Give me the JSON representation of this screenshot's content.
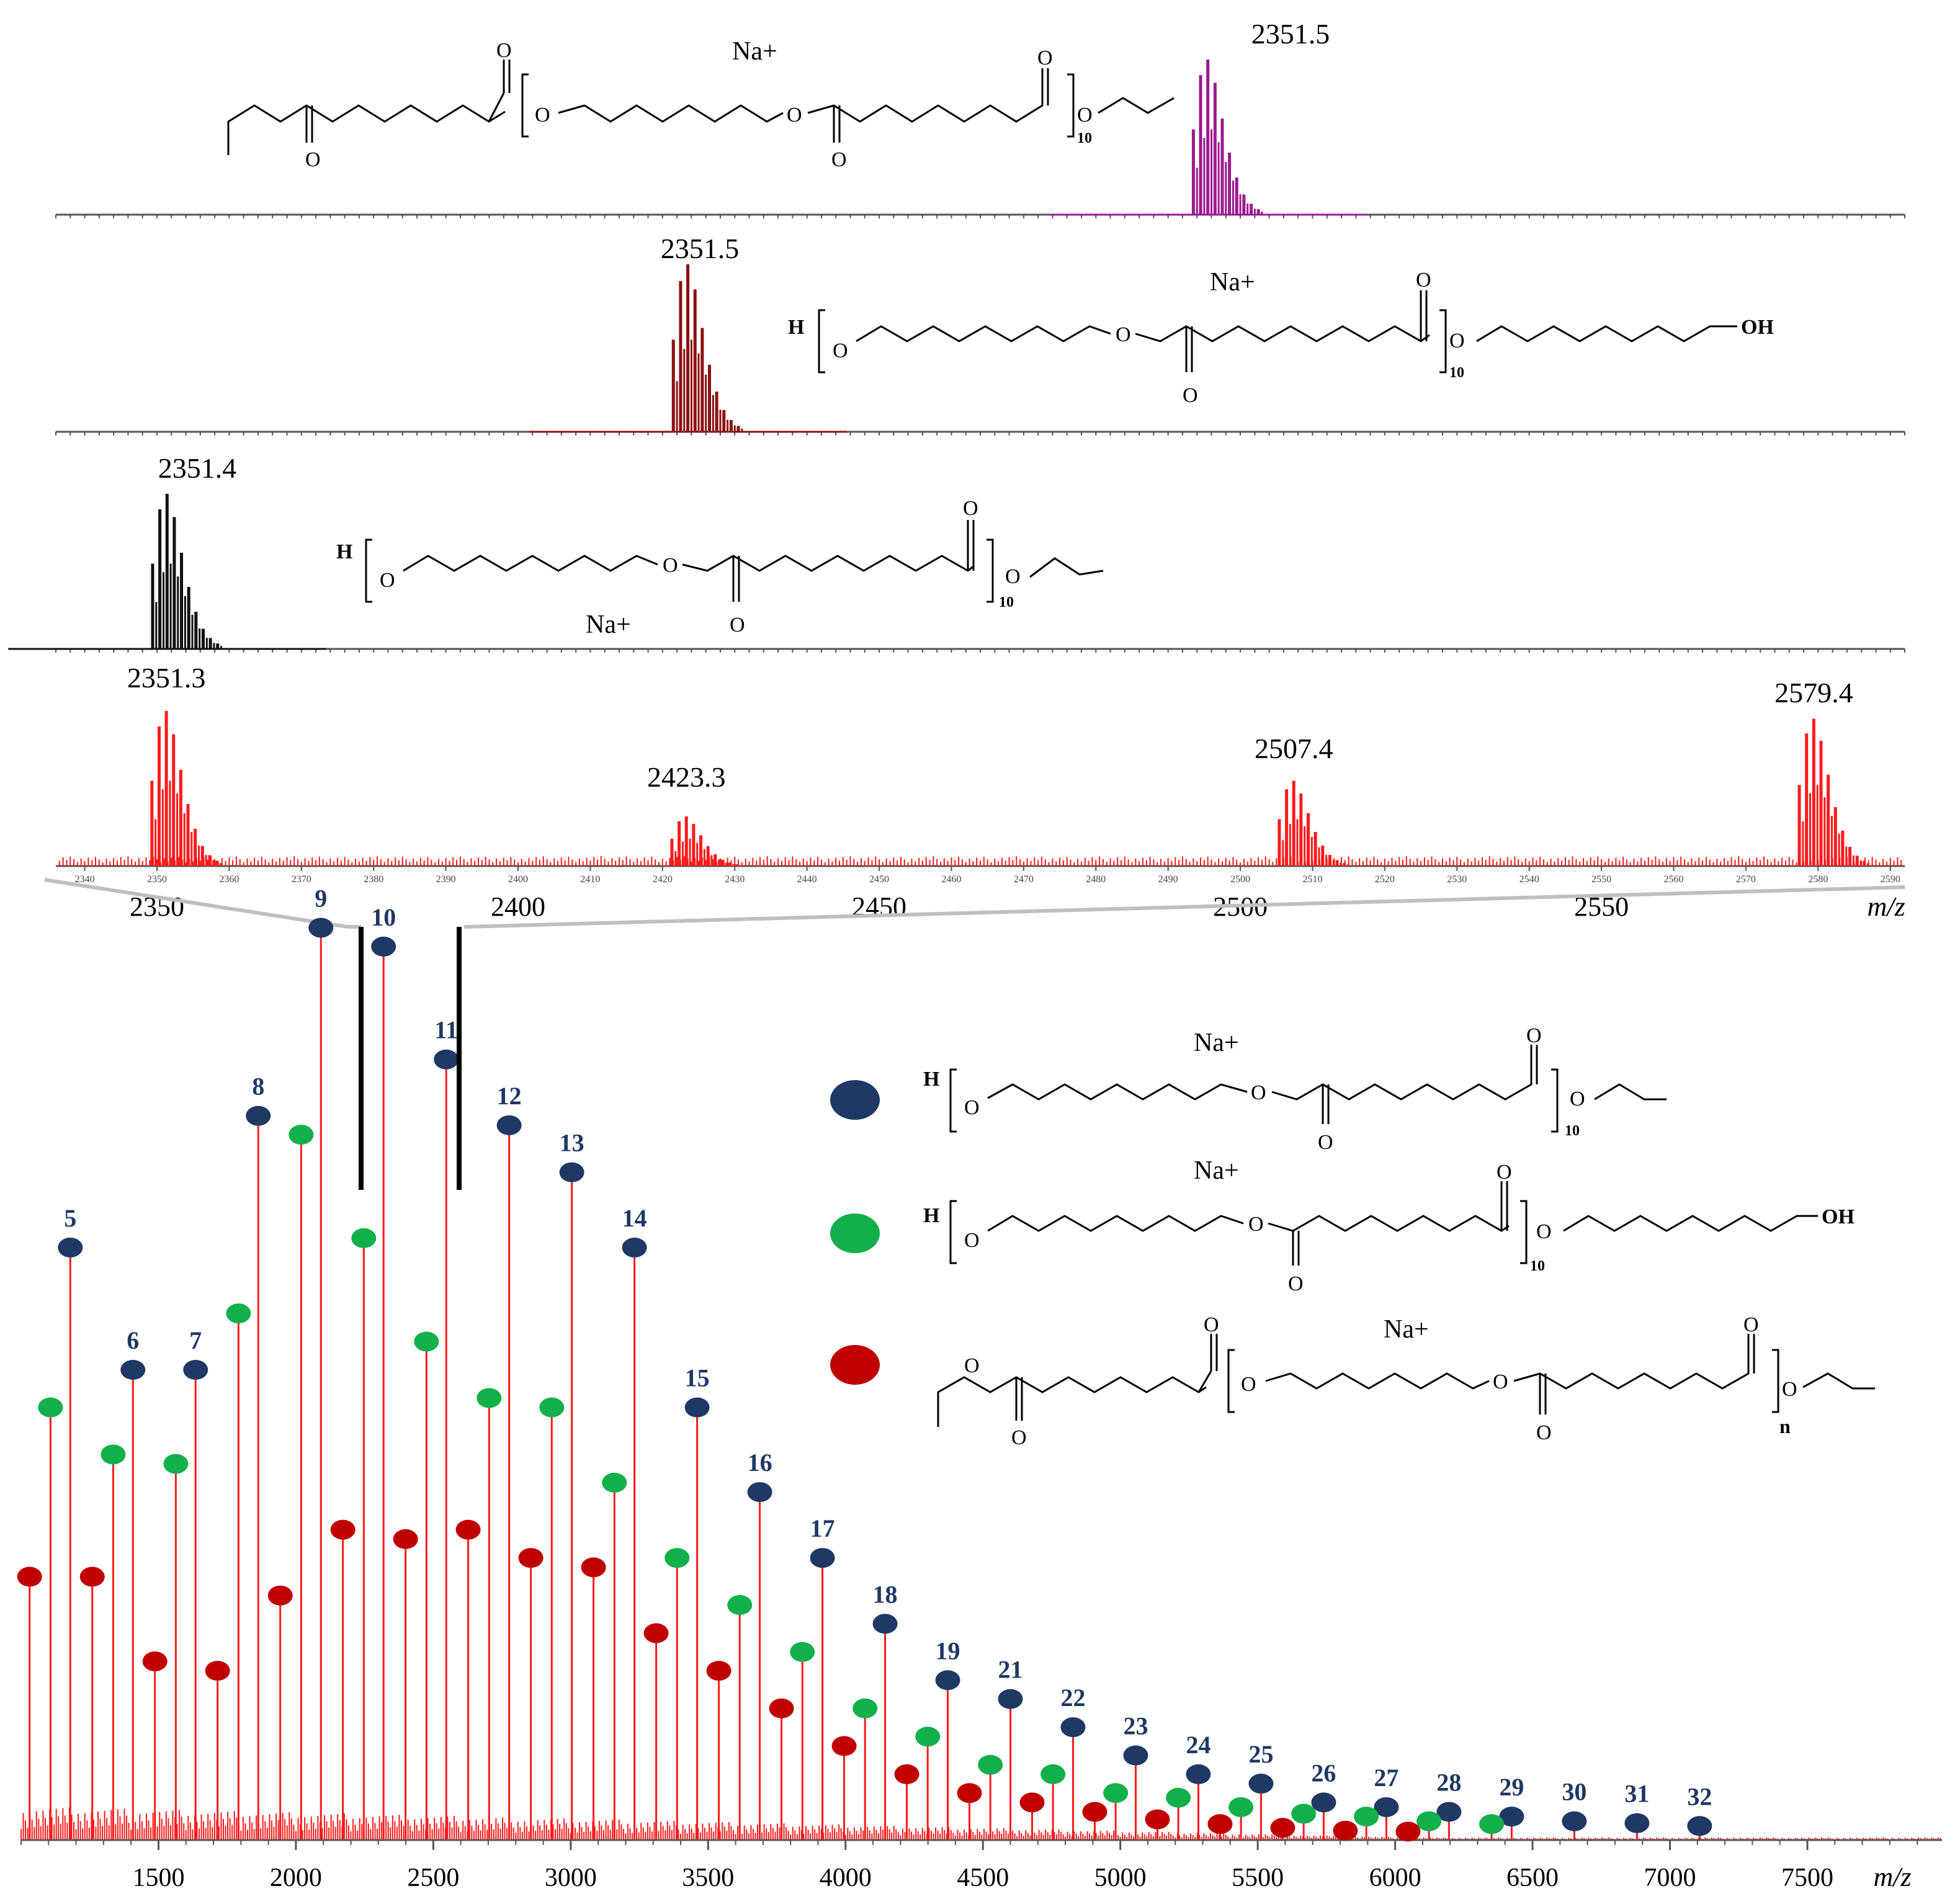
{
  "colors": {
    "background": "#ffffff",
    "spectrum_red": "#ff1a1a",
    "spectrum_purple": "#9c1a8e",
    "spectrum_darkred": "#8b1111",
    "spectrum_black": "#111111",
    "marker_blue": "#1f3864",
    "marker_green": "#12b04a",
    "marker_red": "#c00000",
    "axis": "#555555",
    "zoom_line": "#bfbfbf"
  },
  "chart_data": [
    {
      "id": "sim-ethyl-ethyl",
      "type": "line",
      "title": "",
      "peak_label": "2351.5",
      "peak_mz": 2351.5,
      "relative_intensity": 1.0,
      "cation": "Na+",
      "structure": "ethyl-terminated adipate / hexanediol ester, both ends ethyl ester",
      "subscript": "10",
      "color": "purple"
    },
    {
      "id": "sim-oh-oh",
      "type": "line",
      "title": "",
      "peak_label": "2351.5",
      "peak_mz": 2351.5,
      "relative_intensity": 1.0,
      "cation": "Na+",
      "end_group_left": "H",
      "end_group_right": "OH",
      "subscript": "10",
      "color": "darkred"
    },
    {
      "id": "sim-oh-ethyl",
      "type": "line",
      "title": "",
      "peak_label": "2351.4",
      "peak_mz": 2351.4,
      "relative_intensity": 1.0,
      "cation": "Na+",
      "end_group_left": "H",
      "subscript": "10",
      "color": "black"
    },
    {
      "id": "experimental-zoom",
      "type": "line",
      "xlabel": "m/z",
      "xlim": [
        2336,
        2592
      ],
      "minor_tick_labels": [
        "2340",
        "2350",
        "2360",
        "2370",
        "2380",
        "2390",
        "2400",
        "2410",
        "2420",
        "2430",
        "2440",
        "2450",
        "2460",
        "2470",
        "2480",
        "2490",
        "2500",
        "2510",
        "2520",
        "2530",
        "2540",
        "2550",
        "2560",
        "2570",
        "2580",
        "2590"
      ],
      "major_tick_labels": [
        "2350",
        "2400",
        "2450",
        "2500",
        "2550"
      ],
      "peaks": [
        {
          "label": "2351.3",
          "mz": 2351.3,
          "intensity": 1.0
        },
        {
          "label": "2423.3",
          "mz": 2423.3,
          "intensity": 0.32
        },
        {
          "label": "2507.4",
          "mz": 2507.4,
          "intensity": 0.55
        },
        {
          "label": "2579.4",
          "mz": 2579.4,
          "intensity": 0.95
        }
      ]
    },
    {
      "id": "full-spectrum",
      "type": "line",
      "xlabel": "m/z",
      "xlim": [
        1000,
        7990
      ],
      "ylim": [
        0,
        1
      ],
      "x_tick_labels": [
        "1500",
        "2000",
        "2500",
        "3000",
        "3500",
        "4000",
        "4500",
        "5000",
        "5500",
        "6000",
        "6500",
        "7000",
        "7500"
      ],
      "series": [
        {
          "name": "H / ethyl terminated (blue)",
          "marker": "blue",
          "points": [
            {
              "n": "5",
              "mz": 1179,
              "intensity": 0.63
            },
            {
              "n": "6",
              "mz": 1407,
              "intensity": 0.5
            },
            {
              "n": "7",
              "mz": 1635,
              "intensity": 0.5
            },
            {
              "n": "8",
              "mz": 1863,
              "intensity": 0.77
            },
            {
              "n": "9",
              "mz": 2091,
              "intensity": 0.97
            },
            {
              "n": "10",
              "mz": 2319,
              "intensity": 0.95
            },
            {
              "n": "11",
              "mz": 2547,
              "intensity": 0.83
            },
            {
              "n": "12",
              "mz": 2776,
              "intensity": 0.76
            },
            {
              "n": "13",
              "mz": 3004,
              "intensity": 0.71
            },
            {
              "n": "14",
              "mz": 3232,
              "intensity": 0.63
            },
            {
              "n": "15",
              "mz": 3460,
              "intensity": 0.46
            },
            {
              "n": "16",
              "mz": 3688,
              "intensity": 0.37
            },
            {
              "n": "17",
              "mz": 3916,
              "intensity": 0.3
            },
            {
              "n": "18",
              "mz": 4144,
              "intensity": 0.23
            },
            {
              "n": "19",
              "mz": 4372,
              "intensity": 0.17
            },
            {
              "n": "21",
              "mz": 4600,
              "intensity": 0.15
            },
            {
              "n": "22",
              "mz": 4828,
              "intensity": 0.12
            },
            {
              "n": "23",
              "mz": 5056,
              "intensity": 0.09
            },
            {
              "n": "24",
              "mz": 5284,
              "intensity": 0.07
            },
            {
              "n": "25",
              "mz": 5512,
              "intensity": 0.06
            },
            {
              "n": "26",
              "mz": 5740,
              "intensity": 0.04
            },
            {
              "n": "27",
              "mz": 5968,
              "intensity": 0.035
            },
            {
              "n": "28",
              "mz": 6196,
              "intensity": 0.03
            },
            {
              "n": "29",
              "mz": 6424,
              "intensity": 0.025
            },
            {
              "n": "30",
              "mz": 6652,
              "intensity": 0.02
            },
            {
              "n": "31",
              "mz": 6880,
              "intensity": 0.018
            },
            {
              "n": "32",
              "mz": 7108,
              "intensity": 0.015
            }
          ]
        },
        {
          "name": "H / OH terminated (green)",
          "marker": "green",
          "points": [
            {
              "mz": 1107,
              "intensity": 0.46
            },
            {
              "mz": 1335,
              "intensity": 0.41
            },
            {
              "mz": 1563,
              "intensity": 0.4
            },
            {
              "mz": 1791,
              "intensity": 0.56
            },
            {
              "mz": 2019,
              "intensity": 0.75
            },
            {
              "mz": 2247,
              "intensity": 0.64
            },
            {
              "mz": 2475,
              "intensity": 0.53
            },
            {
              "mz": 2703,
              "intensity": 0.47
            },
            {
              "mz": 2931,
              "intensity": 0.46
            },
            {
              "mz": 3159,
              "intensity": 0.38
            },
            {
              "mz": 3387,
              "intensity": 0.3
            },
            {
              "mz": 3615,
              "intensity": 0.25
            },
            {
              "mz": 3843,
              "intensity": 0.2
            },
            {
              "mz": 4071,
              "intensity": 0.14
            },
            {
              "mz": 4299,
              "intensity": 0.11
            },
            {
              "mz": 4527,
              "intensity": 0.08
            },
            {
              "mz": 4755,
              "intensity": 0.07
            },
            {
              "mz": 4983,
              "intensity": 0.05
            },
            {
              "mz": 5211,
              "intensity": 0.045
            },
            {
              "mz": 5439,
              "intensity": 0.035
            },
            {
              "mz": 5667,
              "intensity": 0.028
            },
            {
              "mz": 5895,
              "intensity": 0.025
            },
            {
              "mz": 6123,
              "intensity": 0.02
            },
            {
              "mz": 6351,
              "intensity": 0.017
            }
          ]
        },
        {
          "name": "ethyl / ethyl terminated (red)",
          "marker": "red",
          "points": [
            {
              "mz": 1031,
              "intensity": 0.28
            },
            {
              "mz": 1259,
              "intensity": 0.28
            },
            {
              "mz": 1487,
              "intensity": 0.19
            },
            {
              "mz": 1715,
              "intensity": 0.18
            },
            {
              "mz": 1943,
              "intensity": 0.26
            },
            {
              "mz": 2171,
              "intensity": 0.33
            },
            {
              "mz": 2399,
              "intensity": 0.32
            },
            {
              "mz": 2627,
              "intensity": 0.33
            },
            {
              "mz": 2855,
              "intensity": 0.3
            },
            {
              "mz": 3083,
              "intensity": 0.29
            },
            {
              "mz": 3311,
              "intensity": 0.22
            },
            {
              "mz": 3539,
              "intensity": 0.18
            },
            {
              "mz": 3767,
              "intensity": 0.14
            },
            {
              "mz": 3995,
              "intensity": 0.1
            },
            {
              "mz": 4223,
              "intensity": 0.07
            },
            {
              "mz": 4451,
              "intensity": 0.05
            },
            {
              "mz": 4679,
              "intensity": 0.04
            },
            {
              "mz": 4907,
              "intensity": 0.03
            },
            {
              "mz": 5135,
              "intensity": 0.022
            },
            {
              "mz": 5363,
              "intensity": 0.017
            },
            {
              "mz": 5591,
              "intensity": 0.013
            },
            {
              "mz": 5819,
              "intensity": 0.01
            },
            {
              "mz": 6047,
              "intensity": 0.009
            }
          ]
        }
      ],
      "legend": [
        {
          "marker": "blue",
          "cation": "Na+",
          "end_left": "H",
          "end_right": "",
          "subscript": "10"
        },
        {
          "marker": "green",
          "cation": "Na+",
          "end_left": "H",
          "end_right": "OH",
          "subscript": "10"
        },
        {
          "marker": "red",
          "cation": "Na+",
          "end_left": "",
          "end_right": "",
          "subscript": "n"
        }
      ]
    }
  ]
}
